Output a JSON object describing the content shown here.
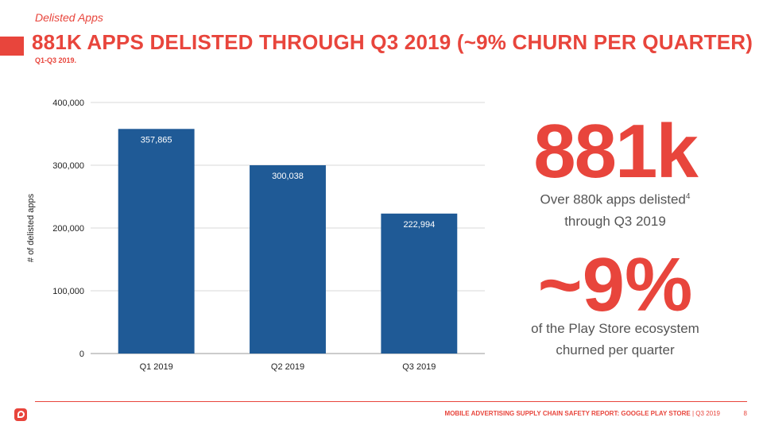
{
  "header": {
    "eyebrow": "Delisted Apps",
    "title": "881K APPS DELISTED THROUGH Q3 2019 (~9% CHURN PER QUARTER)",
    "subtitle": "Q1-Q3 2019."
  },
  "colors": {
    "accent": "#e8453c",
    "bar": "#1f5a96",
    "text_gray": "#555555",
    "grid": "#d9d9d9"
  },
  "stats": {
    "big1": "881k",
    "caption1_line1": "Over 880k apps delisted",
    "caption1_sup": "4",
    "caption1_line2": "through Q3 2019",
    "big2": "~9%",
    "caption2_line1": "of the Play Store ecosystem",
    "caption2_line2": "churned per quarter"
  },
  "footer": {
    "report_title": "MOBILE ADVERTISING SUPPLY CHAIN SAFETY REPORT: GOOGLE PLAY STORE",
    "period": " | Q3 2019",
    "page": "8",
    "logo_icon": "pixalate-logo-icon"
  },
  "chart_data": {
    "type": "bar",
    "categories": [
      "Q1 2019",
      "Q2 2019",
      "Q3 2019"
    ],
    "values": [
      357865,
      300038,
      222994
    ],
    "data_labels": [
      "357,865",
      "300,038",
      "222,994"
    ],
    "title": "",
    "xlabel": "",
    "ylabel": "# of delisted apps",
    "ylim": [
      0,
      400000
    ],
    "yticks": [
      0,
      100000,
      200000,
      300000,
      400000
    ],
    "ytick_labels": [
      "0",
      "100,000",
      "200,000",
      "300,000",
      "400,000"
    ],
    "grid": true,
    "legend": "none"
  }
}
